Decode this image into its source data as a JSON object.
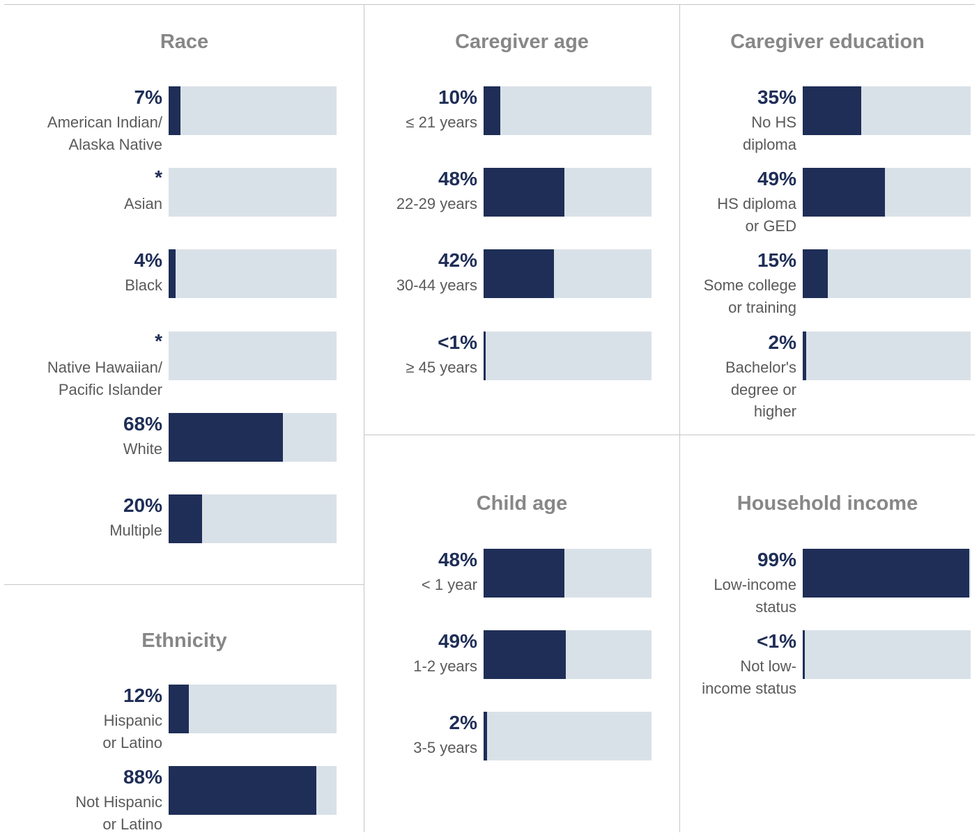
{
  "colors": {
    "bar": "#1f2e57",
    "track": "#d9e1e8",
    "title": "#878787"
  },
  "chart_data": [
    {
      "type": "bar",
      "title": "Race",
      "categories": [
        "American Indian/ Alaska Native",
        "Asian",
        "Black",
        "Native Hawaiian/ Pacific Islander",
        "White",
        "Multiple"
      ],
      "value_labels": [
        "7%",
        "*",
        "4%",
        "*",
        "68%",
        "20%"
      ],
      "values": [
        7,
        null,
        4,
        null,
        68,
        20
      ],
      "xlim": [
        0,
        100
      ]
    },
    {
      "type": "bar",
      "title": "Caregiver age",
      "categories": [
        "≤ 21 years",
        "22-29 years",
        "30-44 years",
        "≥ 45 years"
      ],
      "value_labels": [
        "10%",
        "48%",
        "42%",
        "<1%"
      ],
      "values": [
        10,
        48,
        42,
        0.8
      ],
      "xlim": [
        0,
        100
      ]
    },
    {
      "type": "bar",
      "title": "Caregiver education",
      "categories": [
        "No HS diploma",
        "HS diploma or GED",
        "Some college or training",
        "Bachelor's degree or higher"
      ],
      "value_labels": [
        "35%",
        "49%",
        "15%",
        "2%"
      ],
      "values": [
        35,
        49,
        15,
        2
      ],
      "xlim": [
        0,
        100
      ]
    },
    {
      "type": "bar",
      "title": "Ethnicity",
      "categories": [
        "Hispanic or Latino",
        "Not Hispanic or Latino"
      ],
      "value_labels": [
        "12%",
        "88%"
      ],
      "values": [
        12,
        88
      ],
      "xlim": [
        0,
        100
      ]
    },
    {
      "type": "bar",
      "title": "Child age",
      "categories": [
        "< 1 year",
        "1-2 years",
        "3-5 years"
      ],
      "value_labels": [
        "48%",
        "49%",
        "2%"
      ],
      "values": [
        48,
        49,
        2
      ],
      "xlim": [
        0,
        100
      ]
    },
    {
      "type": "bar",
      "title": "Household income",
      "categories": [
        "Low-income status",
        "Not low-income status"
      ],
      "value_labels": [
        "99%",
        "<1%"
      ],
      "values": [
        99,
        0.8
      ],
      "xlim": [
        0,
        100
      ]
    }
  ]
}
